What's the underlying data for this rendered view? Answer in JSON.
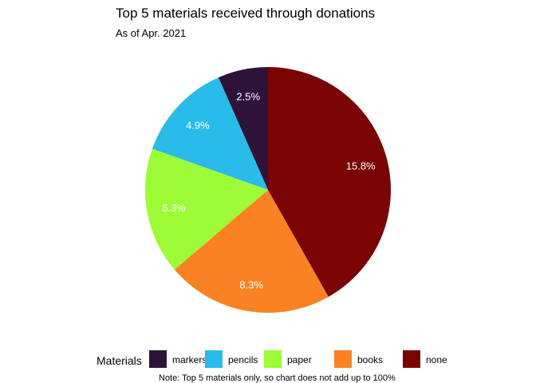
{
  "chart_data": {
    "type": "pie",
    "title": "Top 5 materials received through donations",
    "subtitle": "As of Apr. 2021",
    "caption": "Note: Top 5 materials only, so chart does not add up to 100%",
    "legend_title": "Materials",
    "legend_position": "bottom",
    "slices": [
      {
        "name": "markers",
        "value": 2.5,
        "label": "2.5%",
        "color": "#2e1338"
      },
      {
        "name": "pencils",
        "value": 4.9,
        "label": "4.9%",
        "color": "#29bbe9"
      },
      {
        "name": "paper",
        "value": 6.3,
        "label": "6.3%",
        "color": "#9dfb38"
      },
      {
        "name": "books",
        "value": 8.3,
        "label": "8.3%",
        "color": "#fb8222"
      },
      {
        "name": "none",
        "value": 15.8,
        "label": "15.8%",
        "color": "#7a0403"
      }
    ]
  }
}
